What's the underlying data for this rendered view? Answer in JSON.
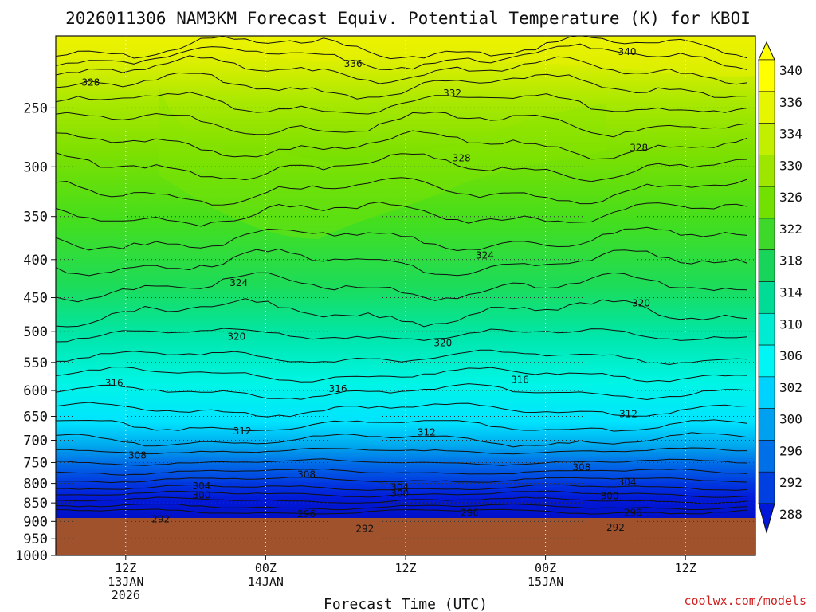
{
  "chart_data": {
    "type": "heatmap",
    "title": "2026011306 NAM3KM Forecast Equiv. Potential Temperature (K) for KBOI",
    "xlabel": "Forecast Time (UTC)",
    "ylabel": "",
    "y_ticks": [
      250,
      300,
      350,
      400,
      450,
      500,
      550,
      600,
      650,
      700,
      750,
      800,
      850,
      900,
      950,
      1000
    ],
    "y_range_hpa": [
      200,
      1000
    ],
    "surface_pressure_hpa": 925,
    "x_range_hours": [
      6,
      66
    ],
    "x_ticks": [
      {
        "hour": 12,
        "line1": "12Z",
        "line2": "13JAN",
        "line3": "2026"
      },
      {
        "hour": 24,
        "line1": "00Z",
        "line2": "14JAN",
        "line3": ""
      },
      {
        "hour": 36,
        "line1": "12Z",
        "line2": "",
        "line3": ""
      },
      {
        "hour": 48,
        "line1": "00Z",
        "line2": "15JAN",
        "line3": ""
      },
      {
        "hour": 60,
        "line1": "12Z",
        "line2": "",
        "line3": ""
      }
    ],
    "colorbar_levels": [
      340,
      336,
      334,
      330,
      326,
      322,
      318,
      314,
      310,
      306,
      302,
      300,
      296,
      292,
      288
    ],
    "contour_levels": [
      292,
      296,
      300,
      304,
      308,
      312,
      316,
      320,
      324,
      328,
      332,
      336,
      340
    ],
    "contour_labels": [
      {
        "text": "340",
        "hour": 55.0,
        "p": 210
      },
      {
        "text": "336",
        "hour": 31.5,
        "p": 218
      },
      {
        "text": "328",
        "hour": 9.0,
        "p": 231
      },
      {
        "text": "332",
        "hour": 40.0,
        "p": 239
      },
      {
        "text": "328",
        "hour": 56.0,
        "p": 283
      },
      {
        "text": "328",
        "hour": 40.8,
        "p": 292
      },
      {
        "text": "324",
        "hour": 42.8,
        "p": 395
      },
      {
        "text": "324",
        "hour": 21.7,
        "p": 430
      },
      {
        "text": "320",
        "hour": 56.2,
        "p": 458
      },
      {
        "text": "320",
        "hour": 21.5,
        "p": 508
      },
      {
        "text": "320",
        "hour": 39.2,
        "p": 518
      },
      {
        "text": "316",
        "hour": 11.0,
        "p": 586
      },
      {
        "text": "316",
        "hour": 45.8,
        "p": 580
      },
      {
        "text": "316",
        "hour": 30.2,
        "p": 597
      },
      {
        "text": "312",
        "hour": 55.1,
        "p": 645
      },
      {
        "text": "312",
        "hour": 22.0,
        "p": 680
      },
      {
        "text": "312",
        "hour": 37.8,
        "p": 683
      },
      {
        "text": "308",
        "hour": 13.0,
        "p": 734
      },
      {
        "text": "308",
        "hour": 51.1,
        "p": 761
      },
      {
        "text": "308",
        "hour": 27.5,
        "p": 778
      },
      {
        "text": "304",
        "hour": 55.0,
        "p": 797
      },
      {
        "text": "304",
        "hour": 18.5,
        "p": 807
      },
      {
        "text": "304",
        "hour": 35.5,
        "p": 810
      },
      {
        "text": "300",
        "hour": 35.5,
        "p": 826
      },
      {
        "text": "300",
        "hour": 18.5,
        "p": 830
      },
      {
        "text": "300",
        "hour": 53.5,
        "p": 832
      },
      {
        "text": "296",
        "hour": 27.5,
        "p": 879
      },
      {
        "text": "296",
        "hour": 55.5,
        "p": 876
      },
      {
        "text": "296",
        "hour": 41.5,
        "p": 876
      },
      {
        "text": "292",
        "hour": 15.0,
        "p": 894
      },
      {
        "text": "292",
        "hour": 54.0,
        "p": 917
      },
      {
        "text": "292",
        "hour": 32.5,
        "p": 921
      }
    ]
  },
  "credit": "coolwx.com/models",
  "colors": {
    "ground": "#a0522d",
    "grid": "#333333"
  }
}
